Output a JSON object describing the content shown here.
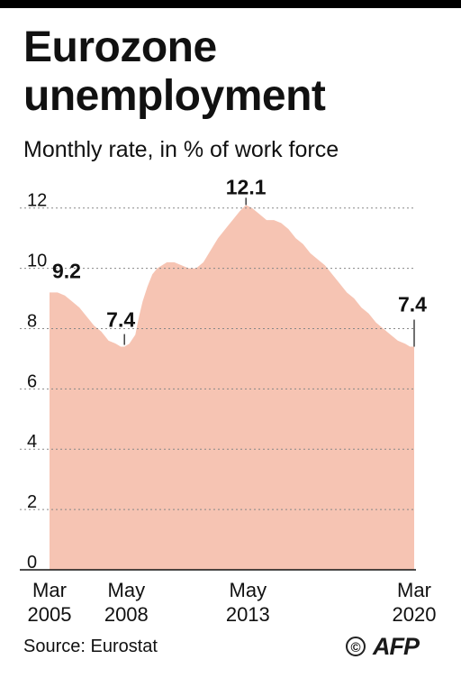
{
  "title": "Eurozone unemployment",
  "subtitle": "Monthly rate, in % of work force",
  "source": "Source: Eurostat",
  "logo": {
    "copyright_symbol": "©",
    "brand": "AFP"
  },
  "colors": {
    "area_fill": "#f6c4b3",
    "grid": "#888888",
    "text": "#111111"
  },
  "chart_data": {
    "type": "area",
    "title": "Eurozone unemployment",
    "subtitle": "Monthly rate, in % of work force",
    "ylim": [
      0,
      12.5
    ],
    "yticks": [
      0,
      2,
      4,
      6,
      8,
      10,
      12
    ],
    "grid": "horizontal dotted",
    "xlim": [
      2005.17,
      2020.17
    ],
    "xticks": [
      {
        "x": 2005.17,
        "line1": "Mar",
        "line2": "2005"
      },
      {
        "x": 2008.33,
        "line1": "May",
        "line2": "2008"
      },
      {
        "x": 2013.33,
        "line1": "May",
        "line2": "2013"
      },
      {
        "x": 2020.17,
        "line1": "Mar",
        "line2": "2020"
      }
    ],
    "annotations": [
      {
        "x": 2005.17,
        "y": 9.2,
        "label": "9.2"
      },
      {
        "x": 2008.25,
        "y": 7.4,
        "label": "7.4"
      },
      {
        "x": 2013.25,
        "y": 12.1,
        "label": "12.1"
      },
      {
        "x": 2020.17,
        "y": 7.4,
        "label": "7.4"
      }
    ],
    "series": [
      {
        "x": [
          2005.17,
          2005.5,
          2005.8,
          2006.1,
          2006.4,
          2006.7,
          2007.0,
          2007.3,
          2007.6,
          2007.9,
          2008.1,
          2008.25,
          2008.45,
          2008.7,
          2008.85,
          2009.0,
          2009.2,
          2009.4,
          2009.6,
          2009.8,
          2010.0,
          2010.3,
          2010.6,
          2010.9,
          2011.2,
          2011.5,
          2011.8,
          2012.1,
          2012.4,
          2012.7,
          2013.0,
          2013.25,
          2013.5,
          2013.8,
          2014.1,
          2014.4,
          2014.7,
          2015.0,
          2015.3,
          2015.6,
          2015.9,
          2016.2,
          2016.5,
          2016.8,
          2017.1,
          2017.4,
          2017.7,
          2018.0,
          2018.3,
          2018.6,
          2018.9,
          2019.2,
          2019.5,
          2019.8,
          2020.0,
          2020.17
        ],
        "y": [
          9.2,
          9.2,
          9.1,
          8.9,
          8.7,
          8.4,
          8.1,
          7.9,
          7.6,
          7.5,
          7.4,
          7.4,
          7.5,
          7.8,
          8.4,
          8.9,
          9.4,
          9.8,
          10.0,
          10.1,
          10.2,
          10.2,
          10.1,
          10.0,
          10.0,
          10.2,
          10.6,
          11.0,
          11.3,
          11.6,
          11.9,
          12.1,
          12.0,
          11.8,
          11.6,
          11.6,
          11.5,
          11.3,
          11.0,
          10.8,
          10.5,
          10.3,
          10.1,
          9.8,
          9.5,
          9.2,
          9.0,
          8.7,
          8.5,
          8.2,
          8.0,
          7.8,
          7.6,
          7.5,
          7.4,
          7.4
        ]
      }
    ]
  }
}
